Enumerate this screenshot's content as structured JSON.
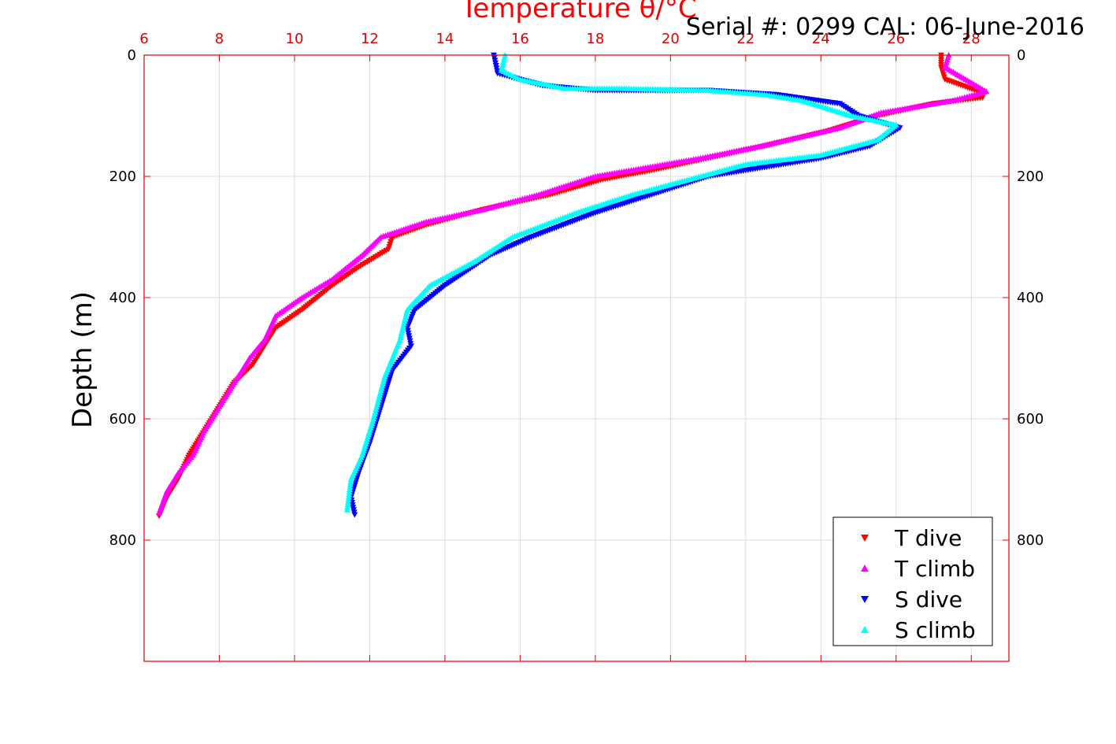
{
  "chart_data": {
    "type": "scatter",
    "title": "Temperature θ/°C",
    "annotation": "Serial #: 0299 CAL: 06-June-2016",
    "xlabel": "Temperature θ/°C",
    "ylabel": "Depth (m)",
    "xlim": [
      6,
      29
    ],
    "ylim": [
      1000,
      0
    ],
    "x_ticks": [
      6,
      8,
      10,
      12,
      14,
      16,
      18,
      20,
      22,
      24,
      26,
      28
    ],
    "y_ticks": [
      0,
      200,
      400,
      600,
      800
    ],
    "x_tick_labels": [
      "6",
      "8",
      "10",
      "12",
      "14",
      "16",
      "18",
      "20",
      "22",
      "24",
      "26",
      "28"
    ],
    "y_tick_labels": [
      "0",
      "200",
      "400",
      "600",
      "800"
    ],
    "grid": true,
    "legend_position": "bottom-right",
    "colors": {
      "axis": "#e00000",
      "grid": "#dcdcdc"
    },
    "series": [
      {
        "name": "T dive",
        "color": "#ff0000",
        "marker": "triangle-down",
        "x": [
          27.2,
          27.2,
          27.3,
          28.2,
          28.3,
          27.0,
          25.5,
          24.2,
          22.5,
          21.0,
          19.5,
          18.2,
          16.8,
          15.0,
          13.5,
          12.6,
          12.5,
          11.7,
          11.0,
          10.2,
          9.5,
          9.2,
          8.9,
          8.4,
          8.0,
          7.6,
          7.2,
          6.9,
          6.6,
          6.4
        ],
        "y": [
          0,
          20,
          40,
          60,
          70,
          80,
          100,
          125,
          150,
          170,
          190,
          205,
          230,
          255,
          280,
          300,
          320,
          350,
          380,
          420,
          450,
          480,
          510,
          540,
          580,
          620,
          660,
          700,
          730,
          760
        ]
      },
      {
        "name": "T climb",
        "color": "#ff00ff",
        "marker": "triangle-up",
        "x": [
          27.4,
          27.3,
          28.4,
          27.5,
          25.6,
          24.5,
          22.4,
          20.8,
          19.4,
          18.0,
          16.5,
          15.0,
          13.5,
          12.3,
          11.8,
          11.0,
          10.2,
          9.5,
          9.2,
          8.8,
          8.4,
          8.0,
          7.6,
          7.3,
          6.9,
          6.6,
          6.4
        ],
        "y": [
          0,
          20,
          60,
          75,
          95,
          120,
          150,
          170,
          185,
          200,
          230,
          255,
          275,
          300,
          330,
          370,
          400,
          430,
          470,
          500,
          540,
          580,
          620,
          660,
          690,
          720,
          755
        ]
      },
      {
        "name": "S dive",
        "color": "#0000ff",
        "marker": "triangle-down",
        "x": [
          15.3,
          15.4,
          16.6,
          18.0,
          21.0,
          22.8,
          24.5,
          25.0,
          26.1,
          25.3,
          24.0,
          22.5,
          21.0,
          19.5,
          18.0,
          16.3,
          15.2,
          14.0,
          13.2,
          13.0,
          13.1,
          12.6,
          12.3,
          12.0,
          11.7,
          11.5,
          11.6
        ],
        "y": [
          0,
          30,
          50,
          58,
          58,
          65,
          80,
          100,
          120,
          150,
          170,
          185,
          200,
          230,
          260,
          300,
          330,
          380,
          420,
          450,
          480,
          520,
          580,
          640,
          690,
          730,
          758
        ]
      },
      {
        "name": "S climb",
        "color": "#00ffff",
        "marker": "triangle-up",
        "x": [
          15.6,
          15.5,
          16.0,
          17.2,
          18.7,
          21.0,
          22.5,
          23.5,
          24.8,
          26.0,
          25.5,
          24.0,
          22.0,
          20.5,
          19.0,
          17.5,
          15.8,
          14.8,
          13.6,
          13.0,
          12.8,
          12.4,
          12.1,
          11.8,
          11.5,
          11.4
        ],
        "y": [
          0,
          25,
          40,
          55,
          55,
          58,
          65,
          75,
          100,
          115,
          140,
          165,
          180,
          205,
          230,
          260,
          300,
          340,
          380,
          420,
          470,
          530,
          600,
          660,
          700,
          750
        ]
      }
    ]
  }
}
